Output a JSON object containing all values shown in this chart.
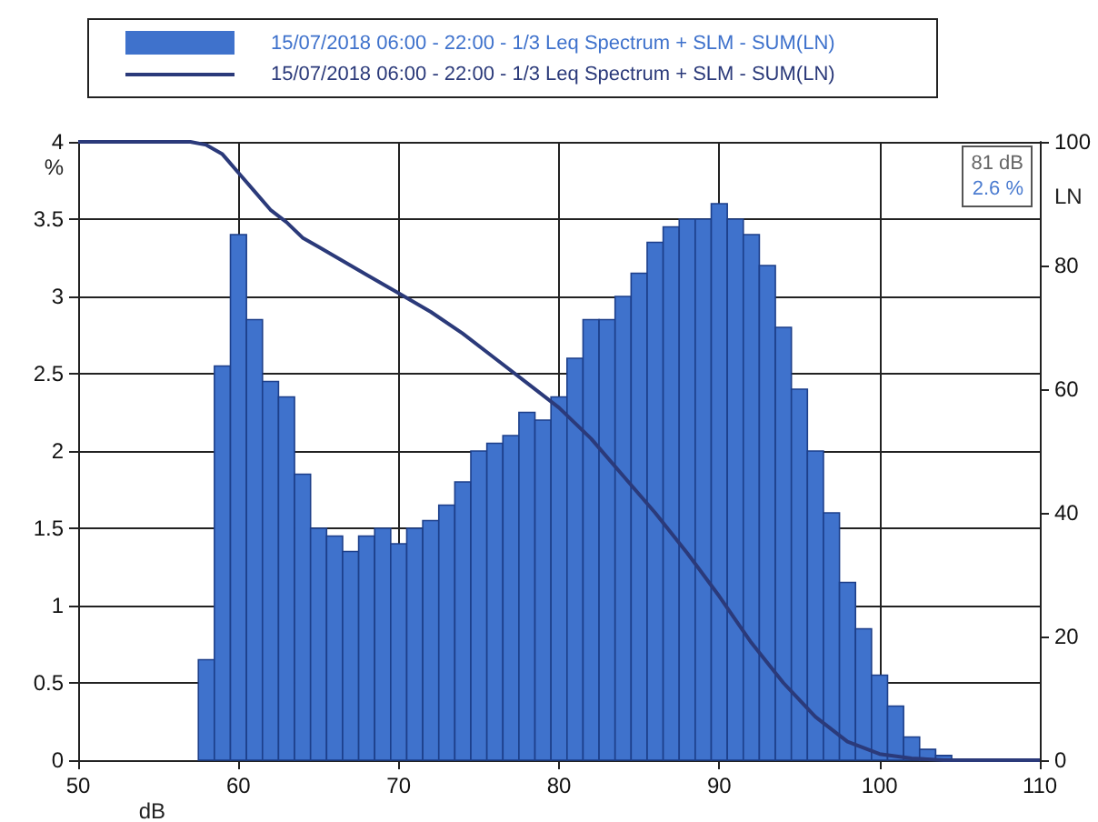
{
  "chart_data": {
    "type": "histogram",
    "xlabel": "dB",
    "ylabel": "%",
    "y2label": "LN",
    "bins": [
      57.5,
      58.5,
      59.5,
      60.5,
      61.5,
      62.5,
      63.5,
      64.5,
      65.5,
      66.5,
      67.5,
      68.5,
      69.5,
      70.5,
      71.5,
      72.5,
      73.5,
      74.5,
      75.5,
      76.5,
      77.5,
      78.5,
      79.5,
      80.5,
      81.5,
      82.5,
      83.5,
      84.5,
      85.5,
      86.5,
      87.5,
      88.5,
      89.5,
      90.5,
      91.5,
      92.5,
      93.5,
      94.5,
      95.5,
      96.5,
      97.5,
      98.5,
      99.5,
      100.5,
      101.5,
      102.5,
      103.5,
      104.5
    ],
    "series": [
      {
        "name": "15/07/2018 06:00 - 22:00 - 1/3 Leq Spectrum + SLM - SUM(LN)",
        "color": "#3f72cc",
        "values": [
          0.65,
          2.55,
          3.4,
          2.85,
          2.45,
          2.35,
          1.85,
          1.5,
          1.45,
          1.35,
          1.45,
          1.5,
          1.4,
          1.5,
          1.55,
          1.65,
          1.8,
          2.0,
          2.05,
          2.1,
          2.25,
          2.2,
          2.35,
          2.6,
          2.85,
          2.85,
          3.0,
          3.15,
          3.35,
          3.45,
          3.5,
          3.5,
          3.6,
          3.5,
          3.4,
          3.2,
          2.8,
          2.4,
          2.0,
          1.6,
          1.15,
          0.85,
          0.55,
          0.35,
          0.15,
          0.07,
          0.03
        ]
      },
      {
        "type": "line",
        "axis": "y2",
        "name": "15/07/2018 06:00 - 22:00 - 1/3 Leq Spectrum + SLM - SUM(LN)",
        "color": "#2b3a7a",
        "x": [
          50,
          57,
          58,
          59,
          60,
          61,
          62,
          63,
          64,
          65,
          66,
          67,
          68,
          70,
          72,
          74,
          76,
          78,
          80,
          82,
          84,
          86,
          88,
          90,
          92,
          94,
          96,
          98,
          100,
          102,
          104,
          110
        ],
        "values": [
          100,
          100,
          99.5,
          98,
          95,
          92,
          89,
          87,
          84.5,
          83,
          81.5,
          80,
          78.5,
          75.5,
          72.5,
          69,
          65,
          61,
          57,
          52,
          46,
          40,
          33.5,
          26.5,
          19,
          12.5,
          7,
          3,
          1,
          0.3,
          0,
          0
        ]
      }
    ],
    "xlim": [
      50,
      110
    ],
    "xticks": [
      50,
      60,
      70,
      80,
      90,
      100,
      110
    ],
    "ylim": [
      0,
      4
    ],
    "yticks": [
      0,
      0.5,
      1,
      1.5,
      2,
      2.5,
      3,
      3.5,
      4
    ],
    "y2lim": [
      0,
      100
    ],
    "y2ticks": [
      0,
      20,
      40,
      60,
      80,
      100
    ],
    "annotations": [
      "81 dB",
      "2.6 %"
    ],
    "grid": true,
    "legend": "top",
    "marker": "none",
    "line_style": "solid"
  }
}
